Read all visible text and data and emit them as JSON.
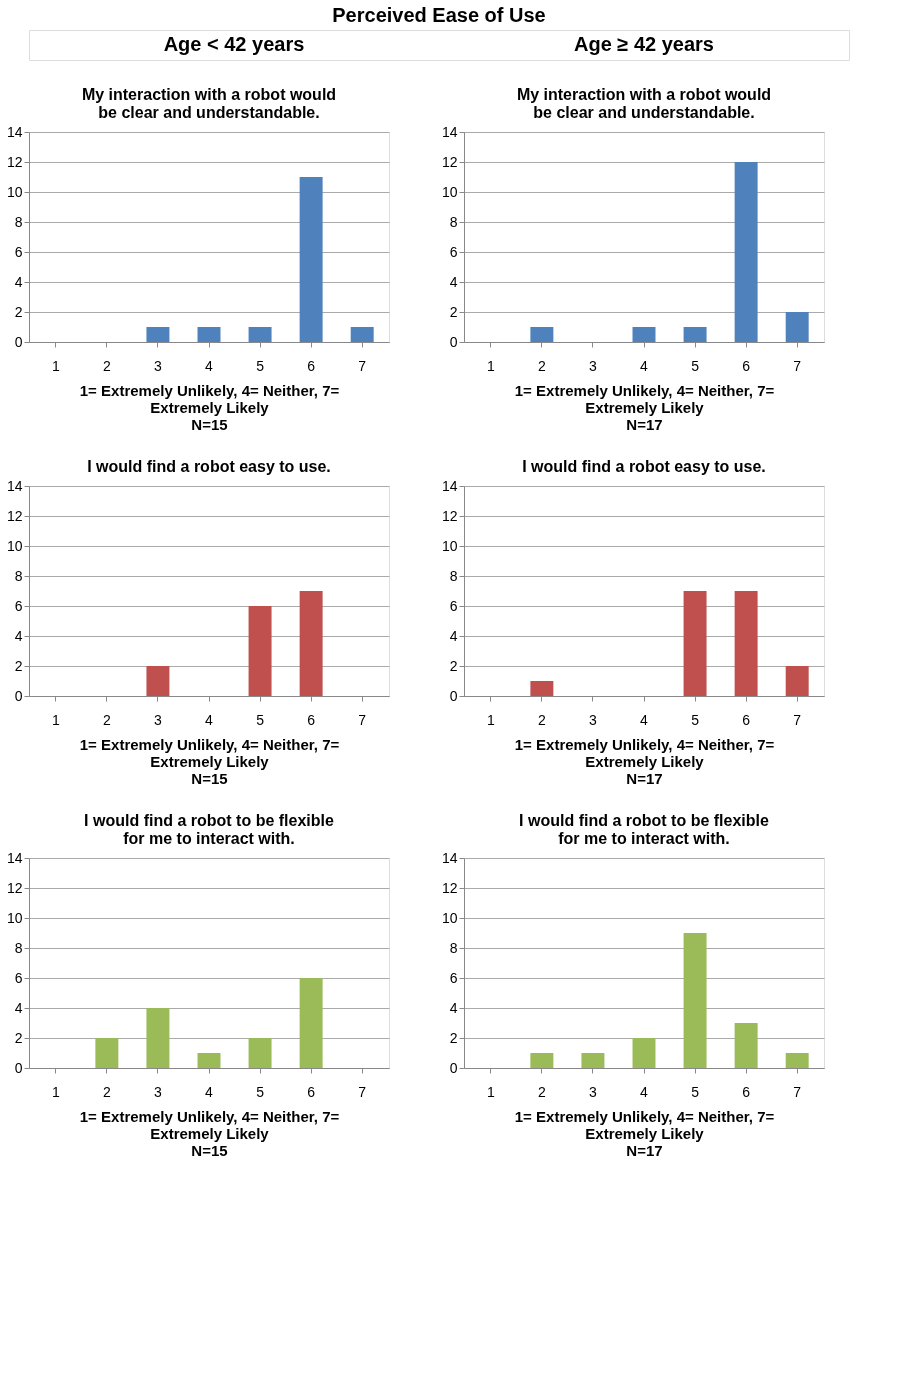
{
  "chart_data": [
    {
      "type": "other",
      "title": "Perceived Ease of Use",
      "annotations": [
        "Age < 42 years",
        "Age ≥ 42 years"
      ]
    },
    {
      "type": "bar",
      "title": "My interaction with a robot would be clear and understandable.",
      "xlabel": "1= Extremely Unlikely, 4= Neither, 7= Extremely Likely",
      "annotations": [
        "N=15"
      ],
      "categories": [
        "1",
        "2",
        "3",
        "4",
        "5",
        "6",
        "7"
      ],
      "values": [
        0,
        0,
        1,
        1,
        1,
        11,
        1
      ],
      "color": "#4f81bd",
      "ylim": [
        0,
        14
      ],
      "yticks": [
        0,
        2,
        4,
        6,
        8,
        10,
        12,
        14
      ],
      "grid": "y"
    },
    {
      "type": "bar",
      "title": "My interaction with a robot would be clear and understandable.",
      "xlabel": "1= Extremely Unlikely, 4= Neither, 7= Extremely Likely",
      "annotations": [
        "N=17"
      ],
      "categories": [
        "1",
        "2",
        "3",
        "4",
        "5",
        "6",
        "7"
      ],
      "values": [
        0,
        1,
        0,
        1,
        1,
        12,
        2
      ],
      "color": "#4f81bd",
      "ylim": [
        0,
        14
      ],
      "yticks": [
        0,
        2,
        4,
        6,
        8,
        10,
        12,
        14
      ],
      "grid": "y"
    },
    {
      "type": "bar",
      "title": "I would find a robot easy to use.",
      "xlabel": "1= Extremely Unlikely, 4= Neither, 7= Extremely Likely",
      "annotations": [
        "N=15"
      ],
      "categories": [
        "1",
        "2",
        "3",
        "4",
        "5",
        "6",
        "7"
      ],
      "values": [
        0,
        0,
        2,
        0,
        6,
        7,
        0
      ],
      "color": "#c0504d",
      "ylim": [
        0,
        14
      ],
      "yticks": [
        0,
        2,
        4,
        6,
        8,
        10,
        12,
        14
      ],
      "grid": "y"
    },
    {
      "type": "bar",
      "title": "I would find a robot easy to use.",
      "xlabel": "1= Extremely Unlikely, 4= Neither, 7= Extremely Likely",
      "annotations": [
        "N=17"
      ],
      "categories": [
        "1",
        "2",
        "3",
        "4",
        "5",
        "6",
        "7"
      ],
      "values": [
        0,
        1,
        0,
        0,
        7,
        7,
        2
      ],
      "color": "#c0504d",
      "ylim": [
        0,
        14
      ],
      "yticks": [
        0,
        2,
        4,
        6,
        8,
        10,
        12,
        14
      ],
      "grid": "y"
    },
    {
      "type": "bar",
      "title": "I would find a robot to be flexible for me to interact with.",
      "xlabel": "1= Extremely Unlikely, 4= Neither, 7= Extremely Likely",
      "annotations": [
        "N=15"
      ],
      "categories": [
        "1",
        "2",
        "3",
        "4",
        "5",
        "6",
        "7"
      ],
      "values": [
        0,
        2,
        4,
        1,
        2,
        6,
        0
      ],
      "color": "#9bbb59",
      "ylim": [
        0,
        14
      ],
      "yticks": [
        0,
        2,
        4,
        6,
        8,
        10,
        12,
        14
      ],
      "grid": "y"
    },
    {
      "type": "bar",
      "title": "I would find a robot to be flexible for me to interact with.",
      "xlabel": "1= Extremely Unlikely, 4= Neither, 7= Extremely Likely",
      "annotations": [
        "N=17"
      ],
      "categories": [
        "1",
        "2",
        "3",
        "4",
        "5",
        "6",
        "7"
      ],
      "values": [
        0,
        1,
        1,
        2,
        9,
        3,
        1
      ],
      "color": "#9bbb59",
      "ylim": [
        0,
        14
      ],
      "yticks": [
        0,
        2,
        4,
        6,
        8,
        10,
        12,
        14
      ],
      "grid": "y"
    }
  ]
}
